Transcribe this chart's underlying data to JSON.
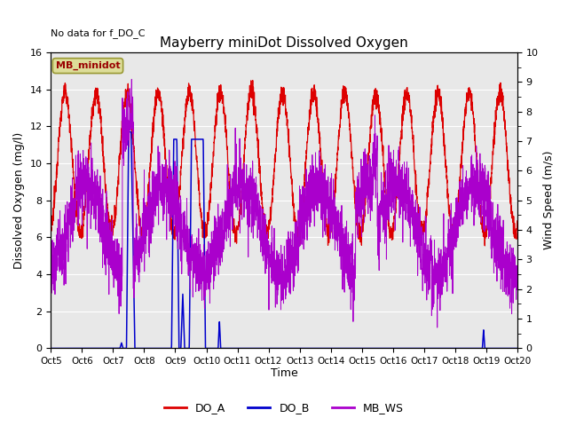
{
  "title": "Mayberry miniDot Dissolved Oxygen",
  "subtitle": "No data for f_DO_C",
  "xlabel": "Time",
  "ylabel_left": "Dissolved Oxygen (mg/l)",
  "ylabel_right": "Wind Speed (m/s)",
  "ylim_left": [
    0,
    16
  ],
  "ylim_right": [
    0,
    10
  ],
  "yticks_left": [
    0,
    2,
    4,
    6,
    8,
    10,
    12,
    14,
    16
  ],
  "yticks_right": [
    0.0,
    1.0,
    2.0,
    3.0,
    4.0,
    5.0,
    6.0,
    7.0,
    8.0,
    9.0,
    10.0
  ],
  "xtick_positions": [
    5,
    6,
    7,
    8,
    9,
    10,
    11,
    12,
    13,
    14,
    15,
    16,
    17,
    18,
    19,
    20
  ],
  "xtick_labels": [
    "Oct 5",
    "Oct 6",
    "Oct 7",
    "Oct 8",
    "Oct 9",
    "Oct 10",
    "Oct 11",
    "Oct 12",
    "Oct 13",
    "Oct 14",
    "Oct 15",
    "Oct 16",
    "Oct 17",
    "Oct 18",
    "Oct 19",
    "Oct 20"
  ],
  "legend_label_box": "MB_minidot",
  "legend_labels": [
    "DO_A",
    "DO_B",
    "MB_WS"
  ],
  "color_DO_A": "#dd0000",
  "color_DO_B": "#0000cc",
  "color_MB_WS": "#aa00cc",
  "bg_color": "#e8e8e8",
  "box_facecolor": "#dddd99",
  "box_edgecolor": "#999933",
  "box_text_color": "#990000",
  "fig_width": 6.4,
  "fig_height": 4.8,
  "dpi": 100
}
